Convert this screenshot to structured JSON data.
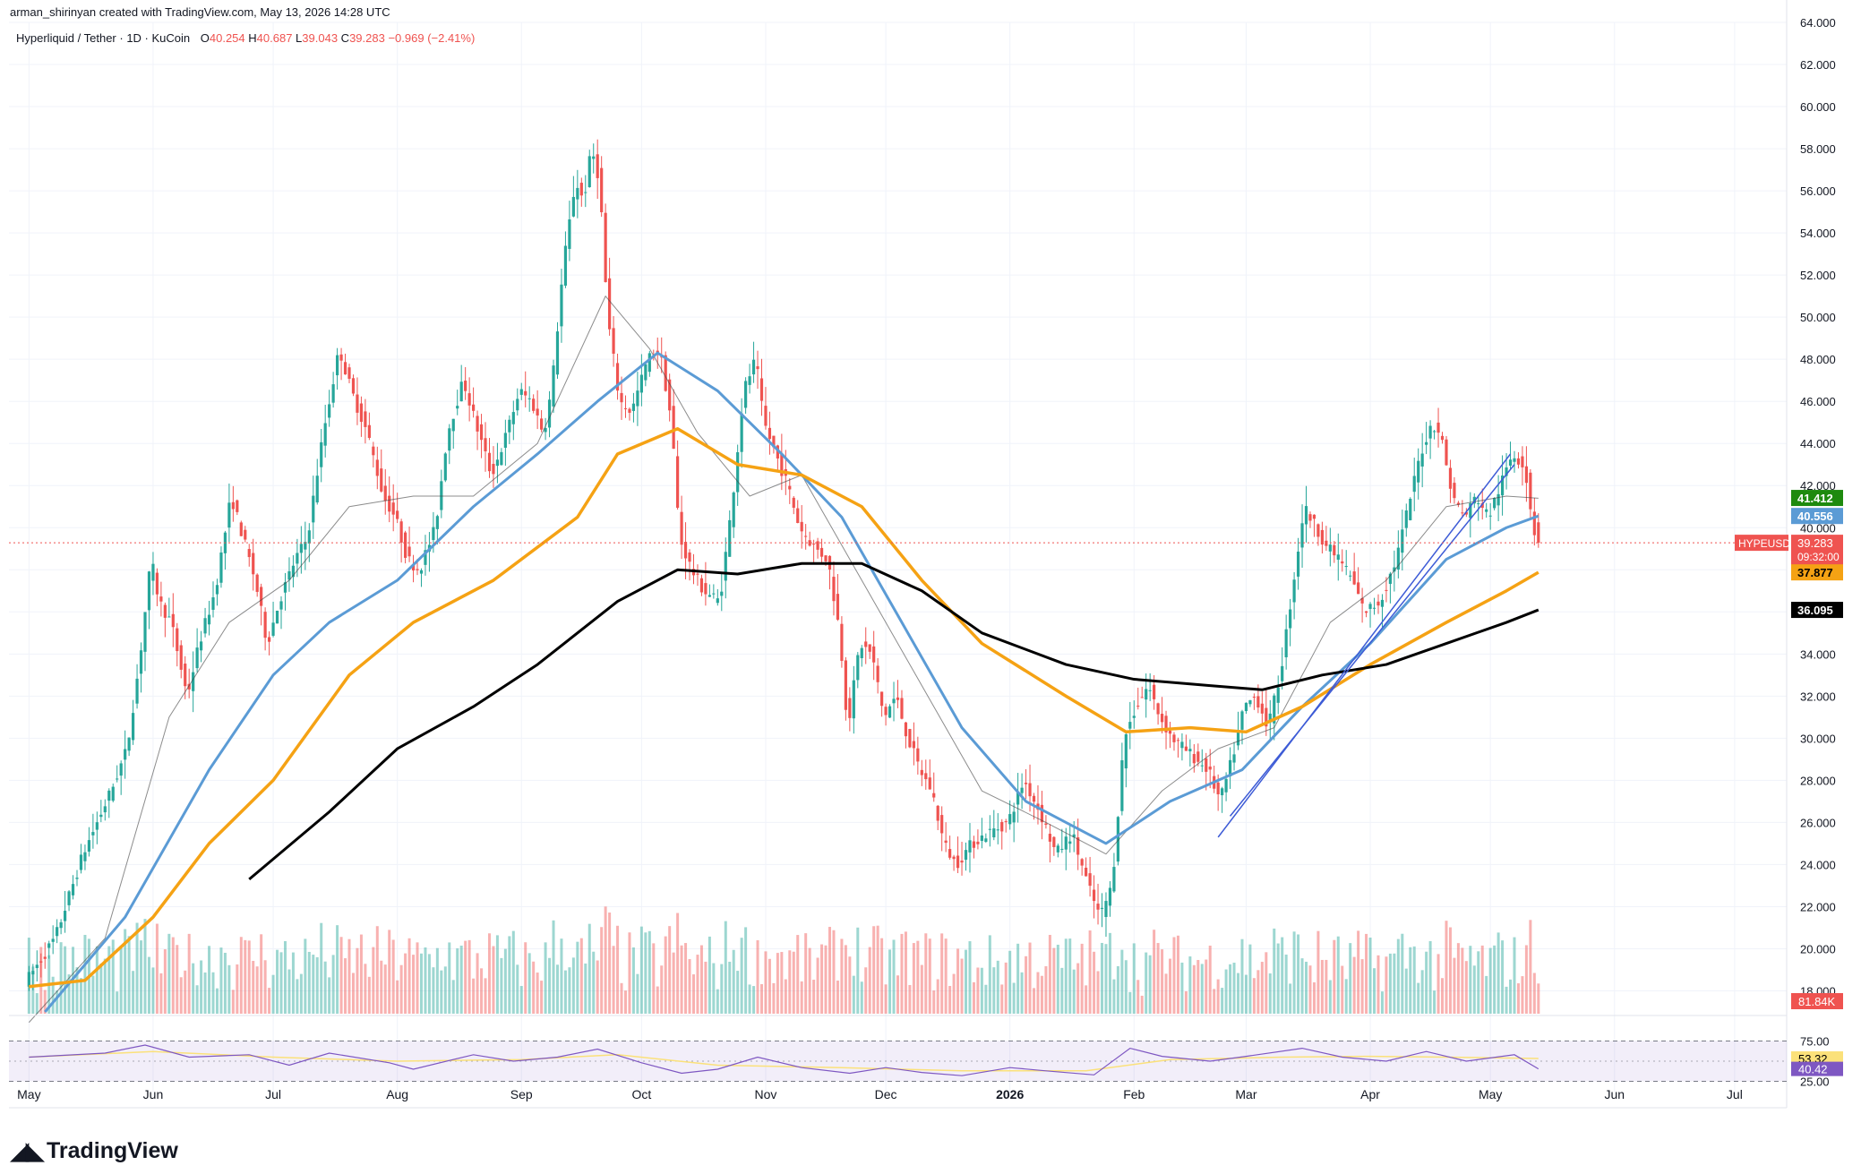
{
  "header": {
    "credit": "arman_shirinyan created with TradingView.com, May 13, 2026 14:28 UTC",
    "symbol": "Hyperliquid / Tether · 1D · KuCoin",
    "open_label": "O",
    "open": "40.254",
    "high_label": "H",
    "high": "40.687",
    "low_label": "L",
    "low": "39.043",
    "close_label": "C",
    "close": "39.283",
    "change": "−0.969 (−2.41%)"
  },
  "watermark": {
    "logo": "TradingView",
    "icon": "tradingview-logo-icon"
  },
  "colors": {
    "up": "#26a69a",
    "down": "#ef5350",
    "ma_fast": "#3f3f3f",
    "ma_blue": "#5b9bd5",
    "ma_orange": "#f5a214",
    "ma_black": "#000000",
    "trendline": "#3d5bd6",
    "rsi": "#7e57c2",
    "rsi_ma": "#fbe17a"
  },
  "chart_data": {
    "type": "candlestick",
    "price_axis": {
      "ylim": [
        17,
        64
      ],
      "ticks": [
        "18.000",
        "20.000",
        "22.000",
        "24.000",
        "26.000",
        "28.000",
        "30.000",
        "32.000",
        "34.000",
        "36.000",
        "38.000",
        "40.000",
        "42.000",
        "44.000",
        "46.000",
        "48.000",
        "50.000",
        "52.000",
        "54.000",
        "56.000",
        "58.000",
        "60.000",
        "62.000",
        "64.000"
      ]
    },
    "time_axis": {
      "labels": [
        "May",
        "Jun",
        "Jul",
        "Aug",
        "Sep",
        "Oct",
        "Nov",
        "Dec",
        "2026",
        "Feb",
        "Mar",
        "Apr",
        "May",
        "Jun",
        "Jul"
      ],
      "bold": [
        "2026"
      ]
    },
    "price_path": [
      [
        "2025-05-01",
        18.5
      ],
      [
        "2025-05-08",
        20.5
      ],
      [
        "2025-05-15",
        24.5
      ],
      [
        "2025-05-22",
        27.5
      ],
      [
        "2025-05-26",
        29.5
      ],
      [
        "2025-05-29",
        33.5
      ],
      [
        "2025-06-01",
        38.5
      ],
      [
        "2025-06-03",
        36.5
      ],
      [
        "2025-06-06",
        35.5
      ],
      [
        "2025-06-10",
        32.0
      ],
      [
        "2025-06-13",
        34.5
      ],
      [
        "2025-06-17",
        37.0
      ],
      [
        "2025-06-21",
        41.5
      ],
      [
        "2025-06-24",
        39.5
      ],
      [
        "2025-06-27",
        37.5
      ],
      [
        "2025-06-30",
        34.5
      ],
      [
        "2025-07-03",
        36.5
      ],
      [
        "2025-07-07",
        38.5
      ],
      [
        "2025-07-10",
        39.5
      ],
      [
        "2025-07-14",
        44.5
      ],
      [
        "2025-07-18",
        48.5
      ],
      [
        "2025-07-21",
        46.5
      ],
      [
        "2025-07-25",
        44.5
      ],
      [
        "2025-07-29",
        41.5
      ],
      [
        "2025-08-01",
        40.5
      ],
      [
        "2025-08-04",
        38.5
      ],
      [
        "2025-08-07",
        38.0
      ],
      [
        "2025-08-11",
        40.0
      ],
      [
        "2025-08-14",
        44.5
      ],
      [
        "2025-08-18",
        47.0
      ],
      [
        "2025-08-21",
        45.0
      ],
      [
        "2025-08-25",
        42.5
      ],
      [
        "2025-08-28",
        44.0
      ],
      [
        "2025-09-01",
        46.5
      ],
      [
        "2025-09-04",
        46.0
      ],
      [
        "2025-09-07",
        44.5
      ],
      [
        "2025-09-09",
        46.5
      ],
      [
        "2025-09-12",
        52.5
      ],
      [
        "2025-09-15",
        56.5
      ],
      [
        "2025-09-17",
        55.5
      ],
      [
        "2025-09-19",
        58.0
      ],
      [
        "2025-09-21",
        56.5
      ],
      [
        "2025-09-23",
        50.0
      ],
      [
        "2025-09-26",
        46.0
      ],
      [
        "2025-09-29",
        45.5
      ],
      [
        "2025-10-03",
        48.0
      ],
      [
        "2025-10-06",
        48.5
      ],
      [
        "2025-10-09",
        45.0
      ],
      [
        "2025-10-11",
        39.5
      ],
      [
        "2025-10-14",
        38.0
      ],
      [
        "2025-10-17",
        37.0
      ],
      [
        "2025-10-21",
        36.5
      ],
      [
        "2025-10-24",
        41.0
      ],
      [
        "2025-10-27",
        46.5
      ],
      [
        "2025-10-30",
        48.0
      ],
      [
        "2025-11-01",
        45.0
      ],
      [
        "2025-11-04",
        43.5
      ],
      [
        "2025-11-07",
        42.0
      ],
      [
        "2025-11-10",
        40.0
      ],
      [
        "2025-11-14",
        39.0
      ],
      [
        "2025-11-17",
        38.5
      ],
      [
        "2025-11-20",
        35.0
      ],
      [
        "2025-11-22",
        30.5
      ],
      [
        "2025-11-25",
        34.5
      ],
      [
        "2025-11-28",
        34.0
      ],
      [
        "2025-12-01",
        31.0
      ],
      [
        "2025-12-04",
        32.0
      ],
      [
        "2025-12-07",
        30.0
      ],
      [
        "2025-12-10",
        28.5
      ],
      [
        "2025-12-13",
        27.5
      ],
      [
        "2025-12-16",
        25.0
      ],
      [
        "2025-12-19",
        24.0
      ],
      [
        "2025-12-23",
        25.0
      ],
      [
        "2025-12-27",
        25.5
      ],
      [
        "2026-01-01",
        26.0
      ],
      [
        "2026-01-05",
        28.0
      ],
      [
        "2026-01-09",
        26.5
      ],
      [
        "2026-01-13",
        24.5
      ],
      [
        "2026-01-17",
        25.5
      ],
      [
        "2026-01-21",
        23.0
      ],
      [
        "2026-01-24",
        21.5
      ],
      [
        "2026-01-27",
        23.0
      ],
      [
        "2026-01-30",
        30.0
      ],
      [
        "2026-02-02",
        31.5
      ],
      [
        "2026-02-05",
        32.5
      ],
      [
        "2026-02-08",
        31.0
      ],
      [
        "2026-02-11",
        30.0
      ],
      [
        "2026-02-14",
        29.5
      ],
      [
        "2026-02-17",
        29.0
      ],
      [
        "2026-02-20",
        28.5
      ],
      [
        "2026-02-23",
        27.0
      ],
      [
        "2026-02-26",
        29.0
      ],
      [
        "2026-03-01",
        31.5
      ],
      [
        "2026-03-04",
        32.0
      ],
      [
        "2026-03-07",
        30.5
      ],
      [
        "2026-03-10",
        33.0
      ],
      [
        "2026-03-13",
        37.0
      ],
      [
        "2026-03-16",
        41.0
      ],
      [
        "2026-03-19",
        40.0
      ],
      [
        "2026-03-22",
        39.0
      ],
      [
        "2026-03-25",
        38.5
      ],
      [
        "2026-03-28",
        37.5
      ],
      [
        "2026-03-31",
        36.0
      ],
      [
        "2026-04-04",
        36.5
      ],
      [
        "2026-04-08",
        38.5
      ],
      [
        "2026-04-11",
        41.0
      ],
      [
        "2026-04-14",
        43.5
      ],
      [
        "2026-04-17",
        45.0
      ],
      [
        "2026-04-19",
        44.5
      ],
      [
        "2026-04-22",
        41.5
      ],
      [
        "2026-04-25",
        40.5
      ],
      [
        "2026-04-28",
        41.5
      ],
      [
        "2026-05-01",
        40.5
      ],
      [
        "2026-05-04",
        42.0
      ],
      [
        "2026-05-07",
        43.5
      ],
      [
        "2026-05-10",
        43.0
      ],
      [
        "2026-05-12",
        40.3
      ],
      [
        "2026-05-13",
        39.283
      ]
    ],
    "moving_averages": [
      {
        "color": "#3f3f3f",
        "points": [
          [
            "2025-05-01",
            16.5
          ],
          [
            "2025-05-20",
            20.5
          ],
          [
            "2025-06-05",
            31.0
          ],
          [
            "2025-06-20",
            35.5
          ],
          [
            "2025-07-05",
            37.5
          ],
          [
            "2025-07-20",
            41.0
          ],
          [
            "2025-08-05",
            41.5
          ],
          [
            "2025-08-20",
            41.5
          ],
          [
            "2025-09-05",
            44.0
          ],
          [
            "2025-09-22",
            51.0
          ],
          [
            "2025-10-03",
            48.5
          ],
          [
            "2025-10-15",
            44.5
          ],
          [
            "2025-10-28",
            41.5
          ],
          [
            "2025-11-10",
            42.5
          ],
          [
            "2025-11-25",
            37.5
          ],
          [
            "2025-12-10",
            32.5
          ],
          [
            "2025-12-25",
            27.5
          ],
          [
            "2026-01-10",
            26.0
          ],
          [
            "2026-01-25",
            24.5
          ],
          [
            "2026-02-08",
            27.5
          ],
          [
            "2026-02-22",
            29.5
          ],
          [
            "2026-03-08",
            30.5
          ],
          [
            "2026-03-22",
            35.5
          ],
          [
            "2026-04-05",
            37.5
          ],
          [
            "2026-04-20",
            41.0
          ],
          [
            "2026-05-05",
            41.5
          ],
          [
            "2026-05-13",
            41.4
          ]
        ]
      },
      {
        "color": "#5b9bd5",
        "points": [
          [
            "2025-05-05",
            17.0
          ],
          [
            "2025-05-25",
            21.5
          ],
          [
            "2025-06-15",
            28.5
          ],
          [
            "2025-07-01",
            33.0
          ],
          [
            "2025-07-15",
            35.5
          ],
          [
            "2025-08-01",
            37.5
          ],
          [
            "2025-08-20",
            41.0
          ],
          [
            "2025-09-05",
            43.5
          ],
          [
            "2025-09-20",
            46.0
          ],
          [
            "2025-10-05",
            48.3
          ],
          [
            "2025-10-20",
            46.5
          ],
          [
            "2025-11-05",
            43.5
          ],
          [
            "2025-11-20",
            40.5
          ],
          [
            "2025-12-05",
            35.5
          ],
          [
            "2025-12-20",
            30.5
          ],
          [
            "2026-01-05",
            27.0
          ],
          [
            "2026-01-25",
            25.0
          ],
          [
            "2026-02-10",
            27.0
          ],
          [
            "2026-02-28",
            28.5
          ],
          [
            "2026-03-15",
            31.5
          ],
          [
            "2026-04-01",
            34.5
          ],
          [
            "2026-04-20",
            38.5
          ],
          [
            "2026-05-05",
            40.0
          ],
          [
            "2026-05-13",
            40.556
          ]
        ]
      },
      {
        "color": "#f5a214",
        "points": [
          [
            "2025-05-01",
            18.2
          ],
          [
            "2025-05-15",
            18.5
          ],
          [
            "2025-06-01",
            21.5
          ],
          [
            "2025-06-15",
            25.0
          ],
          [
            "2025-07-01",
            28.0
          ],
          [
            "2025-07-20",
            33.0
          ],
          [
            "2025-08-05",
            35.5
          ],
          [
            "2025-08-25",
            37.5
          ],
          [
            "2025-09-15",
            40.5
          ],
          [
            "2025-09-25",
            43.5
          ],
          [
            "2025-10-10",
            44.7
          ],
          [
            "2025-10-25",
            43.0
          ],
          [
            "2025-11-10",
            42.5
          ],
          [
            "2025-11-25",
            41.0
          ],
          [
            "2025-12-10",
            37.5
          ],
          [
            "2025-12-25",
            34.5
          ],
          [
            "2026-01-15",
            32.0
          ],
          [
            "2026-01-30",
            30.3
          ],
          [
            "2026-02-15",
            30.5
          ],
          [
            "2026-03-01",
            30.3
          ],
          [
            "2026-03-15",
            31.5
          ],
          [
            "2026-04-01",
            33.5
          ],
          [
            "2026-04-20",
            35.5
          ],
          [
            "2026-05-05",
            37.0
          ],
          [
            "2026-05-13",
            37.877
          ]
        ]
      },
      {
        "color": "#000000",
        "points": [
          [
            "2025-06-25",
            23.3
          ],
          [
            "2025-07-15",
            26.5
          ],
          [
            "2025-08-01",
            29.5
          ],
          [
            "2025-08-20",
            31.5
          ],
          [
            "2025-09-05",
            33.5
          ],
          [
            "2025-09-25",
            36.5
          ],
          [
            "2025-10-10",
            38.0
          ],
          [
            "2025-10-25",
            37.8
          ],
          [
            "2025-11-10",
            38.3
          ],
          [
            "2025-11-25",
            38.3
          ],
          [
            "2025-12-10",
            37.0
          ],
          [
            "2025-12-25",
            35.0
          ],
          [
            "2026-01-15",
            33.5
          ],
          [
            "2026-02-01",
            32.8
          ],
          [
            "2026-02-20",
            32.5
          ],
          [
            "2026-03-05",
            32.3
          ],
          [
            "2026-03-20",
            33.0
          ],
          [
            "2026-04-05",
            33.5
          ],
          [
            "2026-04-20",
            34.5
          ],
          [
            "2026-05-05",
            35.5
          ],
          [
            "2026-05-13",
            36.095
          ]
        ]
      }
    ],
    "trendlines": [
      {
        "color": "#3d5bd6",
        "from": [
          "2026-02-22",
          25.3
        ],
        "to": [
          "2026-05-06",
          43.5
        ]
      },
      {
        "color": "#3d5bd6",
        "from": [
          "2026-02-25",
          26.3
        ],
        "to": [
          "2026-05-07",
          43.0
        ]
      }
    ],
    "price_labels": [
      {
        "text": "41.412",
        "value": 41.412,
        "bg": "#1e8a0e",
        "fg": "#ffffff"
      },
      {
        "text": "40.556",
        "value": 40.556,
        "bg": "#5b9bd5",
        "fg": "#ffffff"
      },
      {
        "text": "39.283",
        "value": 39.283,
        "bg": "#ef5350",
        "fg": "#ffffff",
        "symbol": "HYPEUSDT",
        "countdown": "09:32:00"
      },
      {
        "text": "37.877",
        "value": 37.877,
        "bg": "#f5a214",
        "fg": "#000000"
      },
      {
        "text": "36.095",
        "value": 36.095,
        "bg": "#000000",
        "fg": "#ffffff"
      }
    ],
    "volume": {
      "last_label": "81.84K"
    },
    "rsi": {
      "ylim": [
        20,
        80
      ],
      "levels": [
        25.0,
        75.0
      ],
      "tick_labels": [
        "75.00",
        "25.00"
      ],
      "values": [
        [
          "2025-05-01",
          55
        ],
        [
          "2025-05-20",
          60
        ],
        [
          "2025-05-30",
          70
        ],
        [
          "2025-06-10",
          55
        ],
        [
          "2025-06-25",
          58
        ],
        [
          "2025-07-05",
          45
        ],
        [
          "2025-07-15",
          60
        ],
        [
          "2025-07-30",
          48
        ],
        [
          "2025-08-05",
          40
        ],
        [
          "2025-08-20",
          58
        ],
        [
          "2025-08-30",
          50
        ],
        [
          "2025-09-10",
          55
        ],
        [
          "2025-09-20",
          65
        ],
        [
          "2025-10-01",
          48
        ],
        [
          "2025-10-11",
          35
        ],
        [
          "2025-10-20",
          40
        ],
        [
          "2025-10-30",
          55
        ],
        [
          "2025-11-10",
          42
        ],
        [
          "2025-11-22",
          35
        ],
        [
          "2025-12-01",
          42
        ],
        [
          "2025-12-10",
          36
        ],
        [
          "2025-12-20",
          32
        ],
        [
          "2026-01-01",
          42
        ],
        [
          "2026-01-10",
          38
        ],
        [
          "2026-01-22",
          33
        ],
        [
          "2026-01-31",
          66
        ],
        [
          "2026-02-08",
          56
        ],
        [
          "2026-02-20",
          50
        ],
        [
          "2026-03-01",
          56
        ],
        [
          "2026-03-15",
          66
        ],
        [
          "2026-03-25",
          55
        ],
        [
          "2026-04-05",
          50
        ],
        [
          "2026-04-15",
          62
        ],
        [
          "2026-04-25",
          50
        ],
        [
          "2026-05-07",
          58
        ],
        [
          "2026-05-13",
          40.42
        ]
      ],
      "ma_values": [
        [
          "2025-05-01",
          55
        ],
        [
          "2025-06-01",
          62
        ],
        [
          "2025-07-01",
          55
        ],
        [
          "2025-08-01",
          50
        ],
        [
          "2025-09-01",
          52
        ],
        [
          "2025-09-25",
          58
        ],
        [
          "2025-10-20",
          45
        ],
        [
          "2025-11-20",
          42
        ],
        [
          "2025-12-20",
          38
        ],
        [
          "2026-01-20",
          38
        ],
        [
          "2026-02-10",
          52
        ],
        [
          "2026-03-10",
          55
        ],
        [
          "2026-04-01",
          56
        ],
        [
          "2026-04-20",
          55
        ],
        [
          "2026-05-13",
          53.32
        ]
      ],
      "labels": [
        {
          "text": "53.32",
          "value": 53.32,
          "bg": "#fbe17a",
          "fg": "#000000"
        },
        {
          "text": "40.42",
          "value": 40.42,
          "bg": "#7e57c2",
          "fg": "#ffffff"
        }
      ]
    }
  }
}
